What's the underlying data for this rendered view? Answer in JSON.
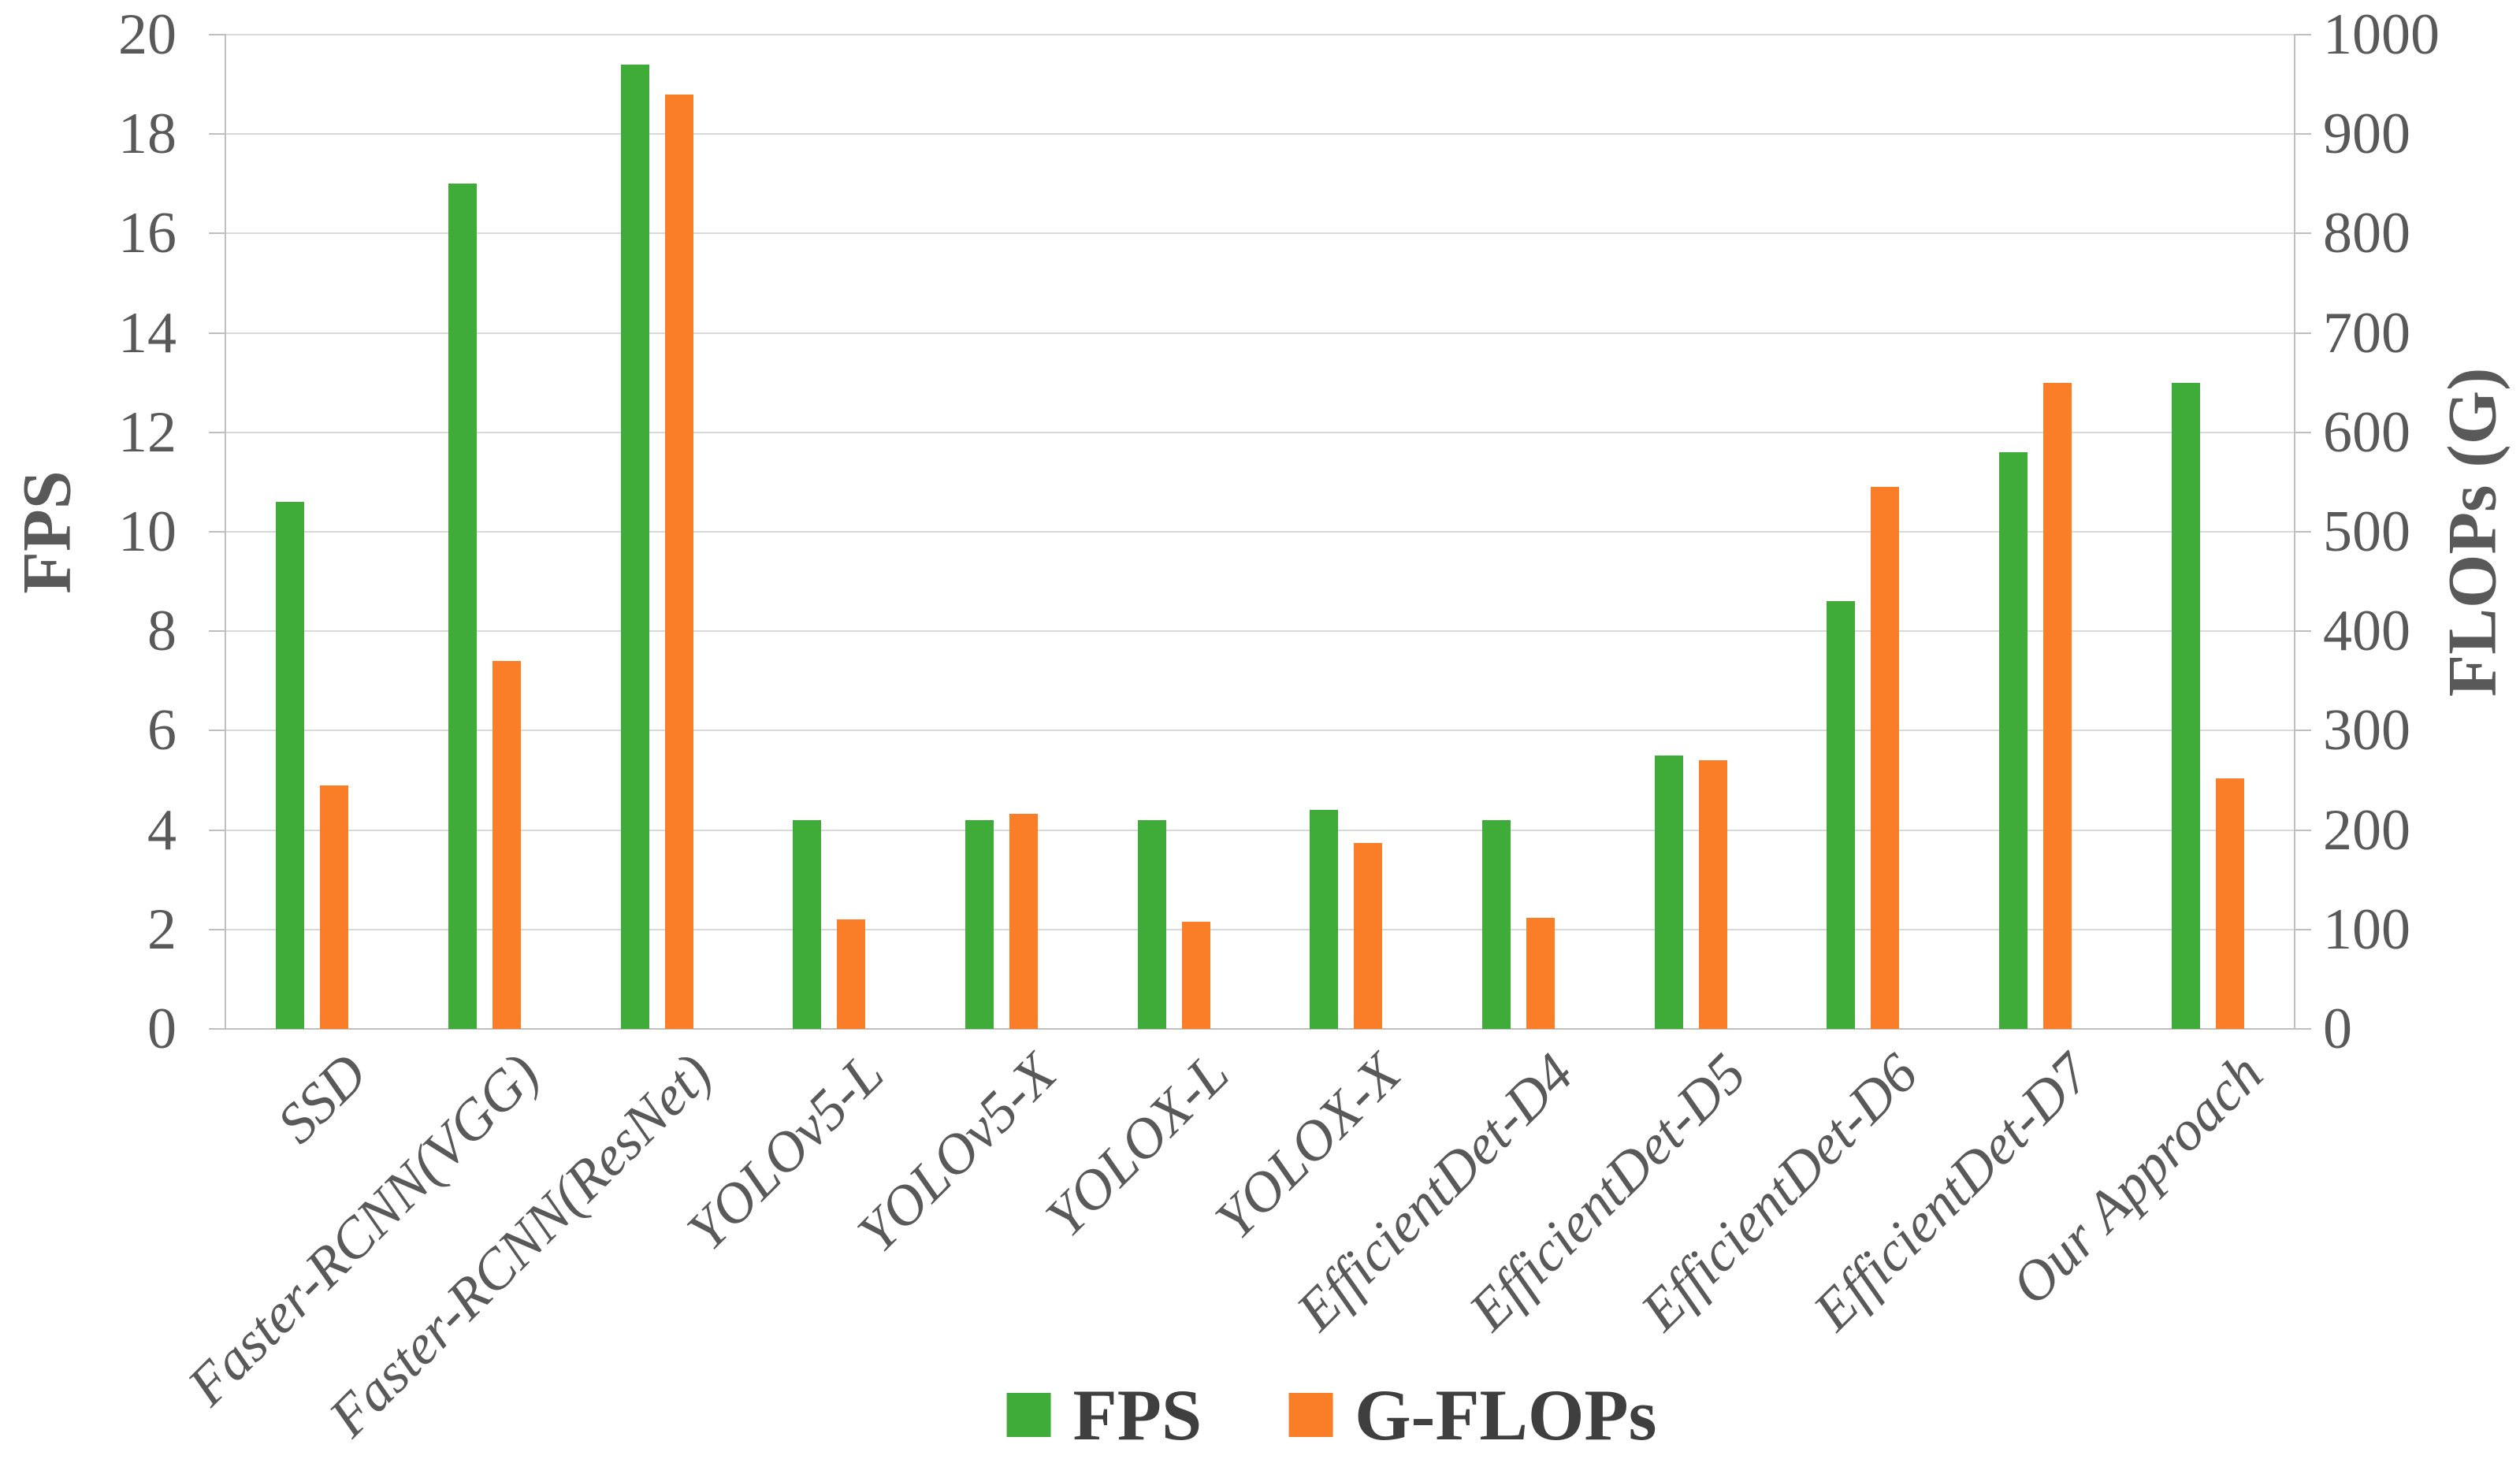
{
  "chart_data": {
    "type": "bar",
    "title": "",
    "categories": [
      "SSD",
      "Faster-RCNN(VGG)",
      "Faster-RCNN(ResNet)",
      "YOLOv5-L",
      "YOLOv5-X",
      "YOLOX-L",
      "YOLOX-X",
      "EfficientDet-D4",
      "EfficientDet-D5",
      "EfficientDet-D6",
      "EfficientDet-D7",
      "Our Approach"
    ],
    "series": [
      {
        "name": "FPS",
        "axis": "left",
        "color": "#3FAC39",
        "values": [
          10.6,
          17.0,
          19.4,
          4.2,
          4.2,
          4.2,
          4.4,
          4.2,
          5.5,
          8.6,
          11.6,
          13.0
        ]
      },
      {
        "name": "G-FLOPs",
        "axis": "right",
        "color": "#F97E27",
        "values": [
          245,
          370,
          940,
          110,
          216,
          108,
          187,
          112,
          270,
          545,
          650,
          252
        ]
      }
    ],
    "left_axis": {
      "label": "FPS",
      "min": 0,
      "max": 20,
      "step": 2,
      "ticks": [
        0,
        2,
        4,
        6,
        8,
        10,
        12,
        14,
        16,
        18,
        20
      ]
    },
    "right_axis": {
      "label": "FLOPs (G)",
      "min": 0,
      "max": 1000,
      "step": 100,
      "ticks": [
        0,
        100,
        200,
        300,
        400,
        500,
        600,
        700,
        800,
        900,
        1000
      ]
    },
    "legend": {
      "position": "bottom",
      "items": [
        {
          "label": "FPS",
          "color": "#3FAC39"
        },
        {
          "label": "G-FLOPs",
          "color": "#F97E27"
        }
      ]
    },
    "grid": true,
    "colors": {
      "gridline": "#D9D9D9",
      "axis_line": "#BFBFBF",
      "tick_text": "#595959",
      "axis_title_text": "#595959",
      "legend_text": "#3F3F3F",
      "background": "#FFFFFF"
    }
  }
}
